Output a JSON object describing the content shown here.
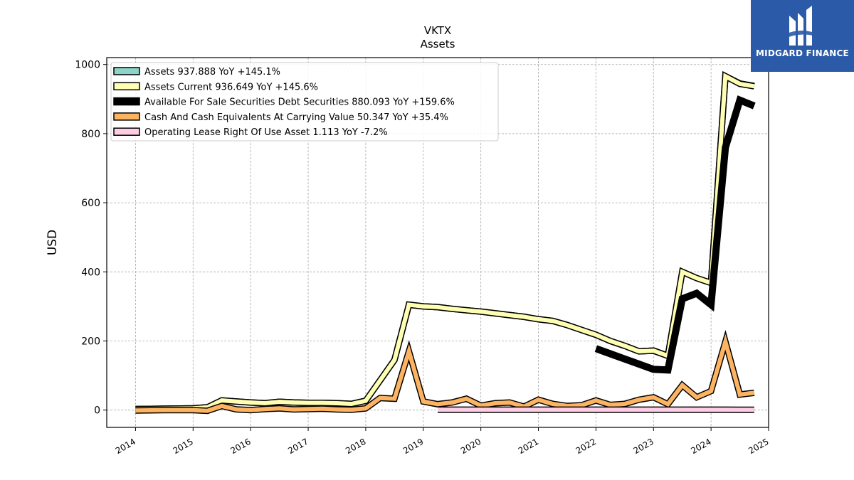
{
  "brand": {
    "name": "MIDGARD FINANCE",
    "bg_color": "#2a5aa8"
  },
  "chart_data": {
    "type": "line",
    "title": "VKTX",
    "subtitle": "Assets",
    "ylabel": "USD",
    "xlabel": "",
    "xlim": [
      2013.5,
      2025.0
    ],
    "ylim": [
      -50,
      1020
    ],
    "x_ticks": [
      2014,
      2015,
      2016,
      2017,
      2018,
      2019,
      2020,
      2021,
      2022,
      2023,
      2024,
      2025
    ],
    "y_ticks": [
      0,
      200,
      400,
      600,
      800,
      1000
    ],
    "grid": true,
    "legend_position": "top-left",
    "series": [
      {
        "name": "Assets  937.888 YoY +145.1%",
        "color": "#8dd3c7",
        "width": 6,
        "points": [
          [
            2014.0,
            3
          ],
          [
            2014.5,
            4
          ],
          [
            2015.0,
            5
          ],
          [
            2015.25,
            8
          ],
          [
            2015.5,
            28
          ],
          [
            2015.75,
            25
          ],
          [
            2016.0,
            22
          ],
          [
            2016.25,
            20
          ],
          [
            2016.5,
            24
          ],
          [
            2016.75,
            22
          ],
          [
            2017.0,
            21
          ],
          [
            2017.25,
            21
          ],
          [
            2017.5,
            20
          ],
          [
            2017.75,
            18
          ],
          [
            2018.0,
            27
          ],
          [
            2018.5,
            145
          ],
          [
            2018.75,
            305
          ],
          [
            2019.0,
            300
          ],
          [
            2019.25,
            298
          ],
          [
            2019.5,
            293
          ],
          [
            2019.75,
            289
          ],
          [
            2020.0,
            285
          ],
          [
            2020.25,
            280
          ],
          [
            2020.5,
            275
          ],
          [
            2020.75,
            270
          ],
          [
            2021.0,
            263
          ],
          [
            2021.25,
            258
          ],
          [
            2021.5,
            246
          ],
          [
            2021.75,
            232
          ],
          [
            2022.0,
            218
          ],
          [
            2022.25,
            200
          ],
          [
            2022.5,
            186
          ],
          [
            2022.75,
            170
          ],
          [
            2023.0,
            172
          ],
          [
            2023.25,
            157
          ],
          [
            2023.5,
            400
          ],
          [
            2023.75,
            382
          ],
          [
            2024.0,
            368
          ],
          [
            2024.25,
            966
          ],
          [
            2024.5,
            945
          ],
          [
            2024.75,
            938
          ]
        ]
      },
      {
        "name": "Assets Current  936.649 YoY +145.6%",
        "color": "#ffffb3",
        "width": 6,
        "points": [
          [
            2014.0,
            3
          ],
          [
            2014.5,
            4
          ],
          [
            2015.0,
            5
          ],
          [
            2015.25,
            8
          ],
          [
            2015.5,
            28
          ],
          [
            2015.75,
            25
          ],
          [
            2016.0,
            22
          ],
          [
            2016.25,
            20
          ],
          [
            2016.5,
            24
          ],
          [
            2016.75,
            22
          ],
          [
            2017.0,
            21
          ],
          [
            2017.25,
            21
          ],
          [
            2017.5,
            20
          ],
          [
            2017.75,
            18
          ],
          [
            2018.0,
            27
          ],
          [
            2018.5,
            145
          ],
          [
            2018.75,
            305
          ],
          [
            2019.0,
            300
          ],
          [
            2019.25,
            298
          ],
          [
            2019.5,
            293
          ],
          [
            2019.75,
            289
          ],
          [
            2020.0,
            285
          ],
          [
            2020.25,
            280
          ],
          [
            2020.5,
            275
          ],
          [
            2020.75,
            270
          ],
          [
            2021.0,
            263
          ],
          [
            2021.25,
            258
          ],
          [
            2021.5,
            246
          ],
          [
            2021.75,
            232
          ],
          [
            2022.0,
            218
          ],
          [
            2022.25,
            200
          ],
          [
            2022.5,
            186
          ],
          [
            2022.75,
            170
          ],
          [
            2023.0,
            172
          ],
          [
            2023.25,
            157
          ],
          [
            2023.5,
            400
          ],
          [
            2023.75,
            382
          ],
          [
            2024.0,
            368
          ],
          [
            2024.25,
            966
          ],
          [
            2024.5,
            944
          ],
          [
            2024.75,
            937
          ]
        ]
      },
      {
        "name": "Available For Sale Securities Debt Securities  880.093 YoY +159.6%",
        "color": "#000000",
        "width": 10,
        "points": [
          [
            2022.0,
            178
          ],
          [
            2022.25,
            163
          ],
          [
            2022.5,
            148
          ],
          [
            2022.75,
            133
          ],
          [
            2023.0,
            118
          ],
          [
            2023.25,
            116
          ],
          [
            2023.5,
            322
          ],
          [
            2023.75,
            338
          ],
          [
            2024.0,
            305
          ],
          [
            2024.25,
            760
          ],
          [
            2024.5,
            897
          ],
          [
            2024.75,
            880
          ]
        ]
      },
      {
        "name": "Cash And Cash Equivalents At Carrying Value  50.347 YoY +35.4%",
        "color": "#fdb462",
        "width": 6,
        "points": [
          [
            2014.0,
            -1
          ],
          [
            2014.5,
            0
          ],
          [
            2015.0,
            0
          ],
          [
            2015.25,
            -2
          ],
          [
            2015.5,
            12
          ],
          [
            2015.75,
            2
          ],
          [
            2016.0,
            0
          ],
          [
            2016.25,
            3
          ],
          [
            2016.5,
            5
          ],
          [
            2016.75,
            2
          ],
          [
            2017.0,
            3
          ],
          [
            2017.25,
            4
          ],
          [
            2017.5,
            2
          ],
          [
            2017.75,
            1
          ],
          [
            2018.0,
            5
          ],
          [
            2018.25,
            35
          ],
          [
            2018.5,
            33
          ],
          [
            2018.75,
            170
          ],
          [
            2019.0,
            25
          ],
          [
            2019.25,
            17
          ],
          [
            2019.5,
            22
          ],
          [
            2019.75,
            33
          ],
          [
            2020.0,
            13
          ],
          [
            2020.25,
            20
          ],
          [
            2020.5,
            22
          ],
          [
            2020.75,
            10
          ],
          [
            2021.0,
            30
          ],
          [
            2021.25,
            18
          ],
          [
            2021.5,
            12
          ],
          [
            2021.75,
            14
          ],
          [
            2022.0,
            28
          ],
          [
            2022.25,
            15
          ],
          [
            2022.5,
            18
          ],
          [
            2022.75,
            30
          ],
          [
            2023.0,
            37
          ],
          [
            2023.25,
            17
          ],
          [
            2023.5,
            72
          ],
          [
            2023.75,
            37
          ],
          [
            2024.0,
            55
          ],
          [
            2024.25,
            198
          ],
          [
            2024.5,
            45
          ],
          [
            2024.75,
            50
          ]
        ]
      },
      {
        "name": "Operating Lease Right Of Use Asset  1.113 YoY -7.2%",
        "color": "#fccde5",
        "width": 6,
        "points": [
          [
            2019.25,
            1.2
          ],
          [
            2019.5,
            1.2
          ],
          [
            2019.75,
            1.2
          ],
          [
            2020.0,
            1.2
          ],
          [
            2020.5,
            1.2
          ],
          [
            2021.0,
            1.2
          ],
          [
            2021.5,
            1.2
          ],
          [
            2022.0,
            1.2
          ],
          [
            2022.5,
            1.2
          ],
          [
            2023.0,
            1.2
          ],
          [
            2023.5,
            1.2
          ],
          [
            2024.0,
            1.2
          ],
          [
            2024.5,
            1.1
          ],
          [
            2024.75,
            1.1
          ]
        ]
      }
    ]
  }
}
